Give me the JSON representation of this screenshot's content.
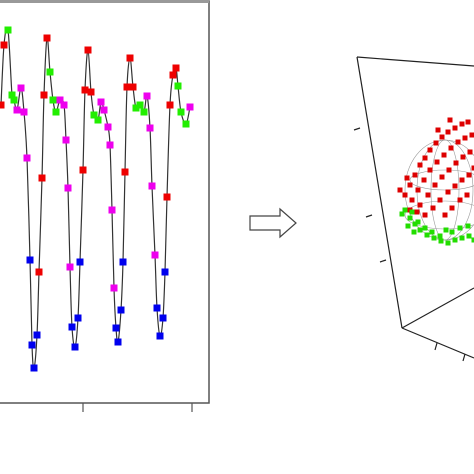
{
  "chart_data": [
    {
      "type": "line",
      "line_color": "#333333",
      "xlim": [
        -1,
        209
      ],
      "ylim": [
        403,
        0
      ],
      "xticks": [
        83,
        192
      ],
      "x": [
        1,
        4,
        8,
        12,
        14,
        17,
        21,
        24,
        27,
        30,
        32,
        34,
        37,
        39,
        42,
        44,
        47,
        50,
        53,
        56,
        60,
        64,
        66,
        68,
        70,
        72,
        75,
        78,
        80,
        83,
        85,
        88,
        91,
        94,
        98,
        101,
        104,
        108,
        110,
        112,
        114,
        116,
        118,
        121,
        123,
        125,
        127,
        130,
        133,
        136,
        140,
        144,
        147,
        150,
        152,
        155,
        157,
        160,
        163,
        165,
        167,
        170,
        173,
        176,
        178,
        181,
        186,
        190
      ],
      "values": [
        105,
        45,
        30,
        95,
        100,
        110,
        88,
        112,
        158,
        260,
        345,
        368,
        335,
        272,
        178,
        95,
        38,
        72,
        100,
        112,
        100,
        105,
        140,
        188,
        267,
        327,
        347,
        318,
        262,
        170,
        90,
        50,
        92,
        115,
        120,
        102,
        110,
        127,
        145,
        210,
        288,
        328,
        342,
        310,
        262,
        172,
        87,
        58,
        87,
        108,
        105,
        112,
        96,
        128,
        186,
        255,
        308,
        336,
        318,
        272,
        197,
        105,
        75,
        68,
        86,
        112,
        124,
        107
      ],
      "point_colors": [
        "#ee0000",
        "#ee0000",
        "#22ee00",
        "#22ee00",
        "#22ee00",
        "#ee00ee",
        "#ee00ee",
        "#ee00ee",
        "#ee00ee",
        "#0000ee",
        "#0000ee",
        "#0000ee",
        "#0000ee",
        "#ee0000",
        "#ee0000",
        "#ee0000",
        "#ee0000",
        "#22ee00",
        "#22ee00",
        "#22ee00",
        "#ee00ee",
        "#ee00ee",
        "#ee00ee",
        "#ee00ee",
        "#ee00ee",
        "#0000ee",
        "#0000ee",
        "#0000ee",
        "#0000ee",
        "#ee0000",
        "#ee0000",
        "#ee0000",
        "#ee0000",
        "#22ee00",
        "#22ee00",
        "#ee00ee",
        "#ee00ee",
        "#ee00ee",
        "#ee00ee",
        "#ee00ee",
        "#ee00ee",
        "#0000ee",
        "#0000ee",
        "#0000ee",
        "#0000ee",
        "#ee0000",
        "#ee0000",
        "#ee0000",
        "#ee0000",
        "#22ee00",
        "#22ee00",
        "#22ee00",
        "#ee00ee",
        "#ee00ee",
        "#ee00ee",
        "#ee00ee",
        "#0000ee",
        "#0000ee",
        "#0000ee",
        "#0000ee",
        "#ee0000",
        "#ee0000",
        "#ee0000",
        "#ee0000",
        "#22ee00",
        "#22ee00",
        "#22ee00",
        "#ee00ee"
      ]
    },
    {
      "type": "scatter",
      "xlim": [
        340,
        474
      ],
      "ylim": [
        474,
        0
      ],
      "series": [
        {
          "color": "#dd0000",
          "x": [
            405,
            410,
            415,
            420,
            425,
            430,
            436,
            442,
            448,
            455,
            462,
            468,
            412,
            418,
            424,
            430,
            437,
            444,
            451,
            458,
            465,
            472,
            420,
            428,
            435,
            442,
            449,
            456,
            463,
            470,
            410,
            417,
            425,
            433,
            440,
            448,
            455,
            462,
            469,
            474,
            445,
            452,
            460,
            467,
            438,
            450,
            400,
            407
          ],
          "values": [
            195,
            185,
            175,
            165,
            158,
            150,
            143,
            137,
            132,
            128,
            124,
            122,
            200,
            190,
            180,
            170,
            162,
            155,
            148,
            142,
            138,
            135,
            205,
            195,
            185,
            177,
            170,
            163,
            157,
            152,
            210,
            212,
            215,
            208,
            200,
            192,
            186,
            180,
            175,
            168,
            215,
            208,
            200,
            195,
            130,
            120,
            190,
            178
          ]
        },
        {
          "color": "#22dd00",
          "x": [
            405,
            410,
            415,
            420,
            427,
            434,
            441,
            448,
            455,
            462,
            469,
            412,
            418,
            425,
            432,
            440,
            446,
            452,
            460,
            468,
            402,
            408,
            414,
            474
          ],
          "values": [
            210,
            218,
            224,
            230,
            235,
            238,
            241,
            243,
            240,
            238,
            236,
            212,
            222,
            228,
            232,
            236,
            230,
            232,
            228,
            226,
            214,
            226,
            232,
            240
          ]
        }
      ]
    }
  ]
}
